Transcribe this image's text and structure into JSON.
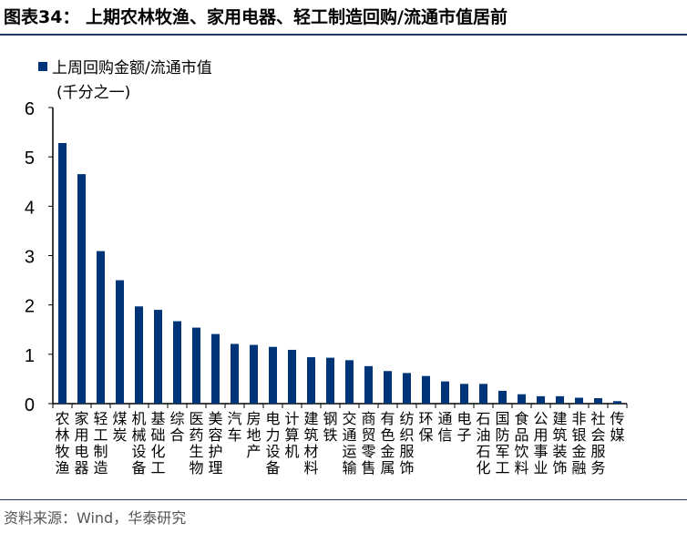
{
  "title": "图表34：  上期农林牧渔、家用电器、轻工制造回购/流通市值居前",
  "source": "资料来源：Wind，华泰研究",
  "chart_data": {
    "type": "bar",
    "title": "图表34：  上期农林牧渔、家用电器、轻工制造回购/流通市值居前",
    "legend": [
      "上周回购金额/流通市值"
    ],
    "legend_position": "top-left",
    "ylabel": "(千分之一)",
    "ylim": [
      0,
      6
    ],
    "yticks": [
      "0",
      "1",
      "2",
      "3",
      "4",
      "5",
      "6"
    ],
    "bar_color": "#003478",
    "categories": [
      "农林牧渔",
      "家用电器",
      "轻工制造",
      "煤炭",
      "机械设备",
      "基础化工",
      "综合",
      "医药生物",
      "美容护理",
      "汽车",
      "房地产",
      "电力设备",
      "计算机",
      "建筑材料",
      "钢铁",
      "交通运输",
      "商贸零售",
      "有色金属",
      "纺织服饰",
      "环保",
      "通信",
      "电子",
      "石油石化",
      "国防军工",
      "食品饮料",
      "公用事业",
      "建筑装饰",
      "非银金融",
      "社会服务",
      "传媒"
    ],
    "values": [
      5.28,
      4.65,
      3.09,
      2.5,
      1.97,
      1.9,
      1.67,
      1.54,
      1.41,
      1.21,
      1.19,
      1.15,
      1.09,
      0.94,
      0.93,
      0.88,
      0.76,
      0.66,
      0.62,
      0.56,
      0.45,
      0.4,
      0.4,
      0.26,
      0.19,
      0.15,
      0.15,
      0.12,
      0.11,
      0.05
    ]
  }
}
